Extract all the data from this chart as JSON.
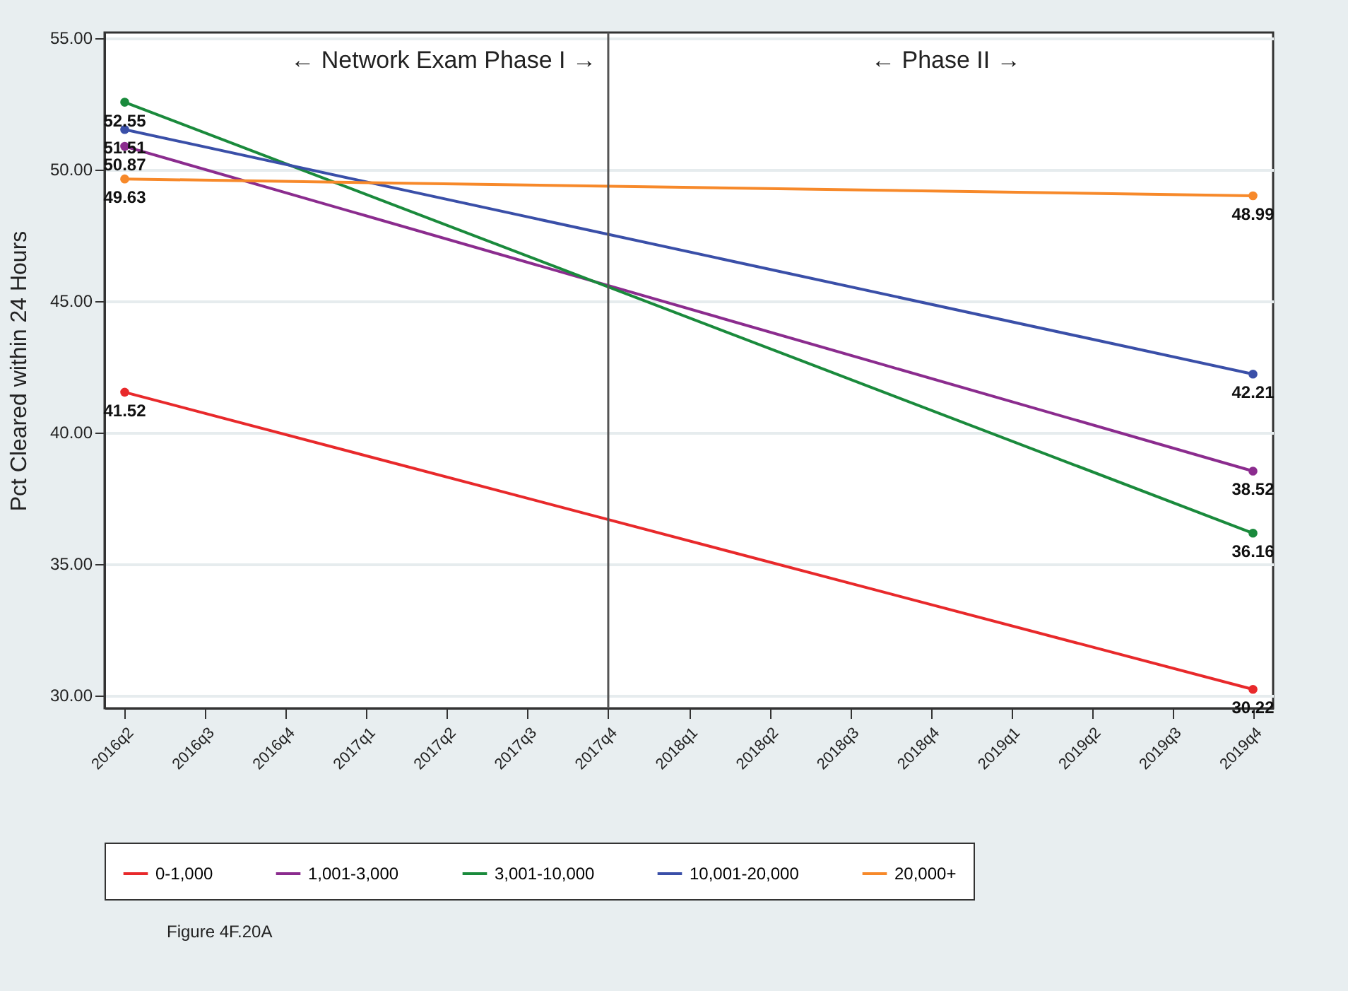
{
  "chart_data": {
    "type": "line",
    "ylabel": "Pct Cleared within 24 Hours",
    "categories": [
      "2016q2",
      "2016q3",
      "2016q4",
      "2017q1",
      "2017q2",
      "2017q3",
      "2017q4",
      "2018q1",
      "2018q2",
      "2018q3",
      "2018q4",
      "2019q1",
      "2019q2",
      "2019q3",
      "2019q4"
    ],
    "series": [
      {
        "name": "0-1,000",
        "color": "#e8292b",
        "values": [
          41.52,
          null,
          null,
          null,
          null,
          null,
          null,
          null,
          null,
          null,
          null,
          null,
          null,
          null,
          30.22
        ]
      },
      {
        "name": "1,001-3,000",
        "color": "#8b2c8e",
        "values": [
          50.87,
          null,
          null,
          null,
          null,
          null,
          null,
          null,
          null,
          null,
          null,
          null,
          null,
          null,
          38.52
        ]
      },
      {
        "name": "3,001-10,000",
        "color": "#1a8a3c",
        "values": [
          52.55,
          null,
          null,
          null,
          null,
          null,
          null,
          null,
          null,
          null,
          null,
          null,
          null,
          null,
          36.16
        ]
      },
      {
        "name": "10,001-20,000",
        "color": "#3a4fa8",
        "values": [
          51.51,
          null,
          null,
          null,
          null,
          null,
          null,
          null,
          null,
          null,
          null,
          null,
          null,
          null,
          42.21
        ]
      },
      {
        "name": "20,000+",
        "color": "#f7892a",
        "values": [
          49.63,
          null,
          null,
          null,
          null,
          null,
          null,
          null,
          null,
          null,
          null,
          null,
          null,
          null,
          48.99
        ]
      }
    ],
    "ylim": [
      29.5,
      55.2
    ],
    "yticks": [
      {
        "value": 30,
        "label": "30.00"
      },
      {
        "value": 35,
        "label": "35.00"
      },
      {
        "value": 40,
        "label": "40.00"
      },
      {
        "value": 45,
        "label": "45.00"
      },
      {
        "value": 50,
        "label": "50.00"
      },
      {
        "value": 55,
        "label": "55.00"
      }
    ],
    "ref_lines": [
      {
        "axis": "x",
        "value": "2017q4",
        "color": "#555555"
      }
    ],
    "annotations": [
      "← Network Exam Phase I →",
      "← Phase II →",
      "Figure 4F.20A"
    ],
    "data_labels": true,
    "grid": "y",
    "legend": "bottom",
    "marker": "circle",
    "line_style": "solid"
  }
}
